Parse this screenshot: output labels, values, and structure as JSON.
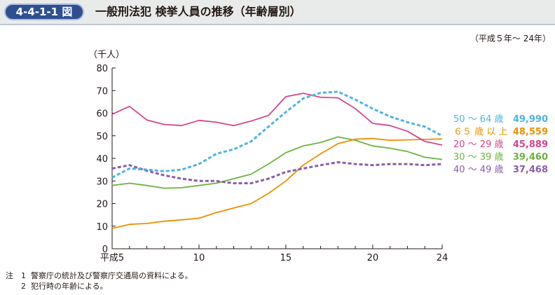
{
  "header": {
    "figure_number": "4-4-1-1 図",
    "title": "一般刑法犯 検挙人員の推移（年齢層別）"
  },
  "period": "（平成５年～ 24年）",
  "notes": {
    "prefix": "注",
    "items": [
      {
        "num": "1",
        "text": "警察庁の統計及び警察庁交通局の資料による。"
      },
      {
        "num": "2",
        "text": "犯行時の年齢による。"
      }
    ]
  },
  "chart_data": {
    "type": "line",
    "ylabel": "（千人）",
    "ylim": [
      0,
      80
    ],
    "yticks": [
      "0",
      "10",
      "20",
      "30",
      "40",
      "50",
      "60",
      "70",
      "80"
    ],
    "xlim": [
      5,
      24
    ],
    "xticks": [
      {
        "x": 5,
        "label": "平成5"
      },
      {
        "x": 10,
        "label": "10"
      },
      {
        "x": 15,
        "label": "15"
      },
      {
        "x": 20,
        "label": "20"
      },
      {
        "x": 24,
        "label": "24"
      }
    ],
    "x": [
      5,
      6,
      7,
      8,
      9,
      10,
      11,
      12,
      13,
      14,
      15,
      16,
      17,
      18,
      19,
      20,
      21,
      22,
      23,
      24
    ],
    "series": [
      {
        "name": "50 ～ 64 歳",
        "value_label": "49,990",
        "color": "#4eb3e6",
        "dashed": true,
        "values": [
          31.5,
          35.5,
          35.0,
          34.3,
          35.0,
          37.5,
          42.0,
          44.0,
          47.5,
          54.0,
          60.5,
          66.5,
          69.0,
          69.5,
          66.0,
          62.0,
          58.5,
          56.0,
          54.0,
          50.0
        ]
      },
      {
        "name": "６５ 歳 以 上",
        "value_label": "48,559",
        "color": "#ec9000",
        "dashed": false,
        "values": [
          9.0,
          10.8,
          11.2,
          12.2,
          12.8,
          13.5,
          16.0,
          18.0,
          20.0,
          24.5,
          30.0,
          37.0,
          42.0,
          46.5,
          48.5,
          48.8,
          48.0,
          48.2,
          48.4,
          48.6
        ]
      },
      {
        "name": "20 ～ 29 歳",
        "value_label": "45,889",
        "color": "#d6448c",
        "dashed": false,
        "values": [
          59.5,
          63.0,
          57.0,
          55.0,
          54.5,
          56.8,
          56.0,
          54.5,
          56.5,
          59.0,
          67.3,
          68.8,
          67.0,
          66.8,
          62.0,
          55.5,
          54.5,
          52.0,
          47.5,
          45.9
        ]
      },
      {
        "name": "30 ～ 39 歳",
        "value_label": "39,460",
        "color": "#6db33f",
        "dashed": false,
        "values": [
          28.0,
          29.0,
          28.0,
          26.8,
          27.0,
          28.0,
          29.0,
          31.0,
          33.0,
          37.5,
          42.5,
          45.5,
          47.0,
          49.5,
          48.0,
          45.5,
          44.5,
          43.0,
          40.5,
          39.5
        ]
      },
      {
        "name": "40 ～ 49 歳",
        "value_label": "37,468",
        "color": "#8a5eab",
        "dashed": true,
        "values": [
          35.5,
          37.0,
          34.5,
          32.5,
          31.0,
          30.0,
          30.0,
          29.0,
          29.0,
          31.0,
          34.0,
          35.5,
          37.0,
          38.3,
          37.5,
          37.0,
          37.5,
          37.5,
          37.0,
          37.5
        ]
      }
    ]
  }
}
